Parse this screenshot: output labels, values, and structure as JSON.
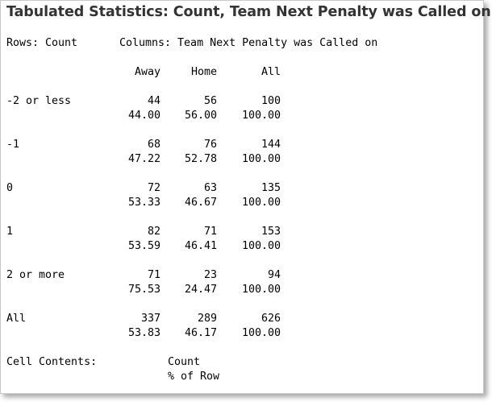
{
  "title": "Tabulated Statistics: Count, Team Next Penalty was Called on",
  "rows_label": "Rows: Count",
  "columns_label": "Columns: Team Next Penalty was Called on",
  "column_headers": [
    "Away",
    "Home",
    "All"
  ],
  "rows": [
    {
      "label": "-2 or less",
      "counts": [
        "44",
        "56",
        "100"
      ],
      "pcts": [
        "44.00",
        "56.00",
        "100.00"
      ]
    },
    {
      "label": "-1",
      "counts": [
        "68",
        "76",
        "144"
      ],
      "pcts": [
        "47.22",
        "52.78",
        "100.00"
      ]
    },
    {
      "label": "0",
      "counts": [
        "72",
        "63",
        "135"
      ],
      "pcts": [
        "53.33",
        "46.67",
        "100.00"
      ]
    },
    {
      "label": "1",
      "counts": [
        "82",
        "71",
        "153"
      ],
      "pcts": [
        "53.59",
        "46.41",
        "100.00"
      ]
    },
    {
      "label": "2 or more",
      "counts": [
        "71",
        "23",
        "94"
      ],
      "pcts": [
        "75.53",
        "24.47",
        "100.00"
      ]
    },
    {
      "label": "All",
      "counts": [
        "337",
        "289",
        "626"
      ],
      "pcts": [
        "53.83",
        "46.17",
        "100.00"
      ]
    }
  ],
  "cell_contents_label": "Cell Contents:",
  "cell_contents": [
    "Count",
    "% of Row"
  ]
}
